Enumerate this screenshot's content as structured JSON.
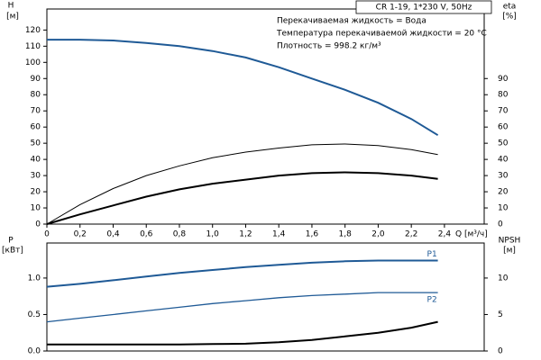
{
  "chart_data": [
    {
      "type": "line",
      "title": "CR 1-19, 1*230 V, 50Hz",
      "annotations": [
        "Перекачиваемая жидкость = Вода",
        "Температура перекачиваемой жидкости = 20 °C",
        "Плотность = 998.2 кг/м³"
      ],
      "y_label": "H",
      "y_unit": "[м]",
      "y2_label": "eta",
      "y2_unit": "[%]",
      "x_label": "Q [м³/ч]",
      "x": [
        0,
        0.2,
        0.4,
        0.6,
        0.8,
        1.0,
        1.2,
        1.4,
        1.6,
        1.8,
        2.0,
        2.2,
        2.36
      ],
      "xlim": [
        0,
        2.64
      ],
      "xticks": [
        0,
        {
          "value": 0.2,
          "label": "0,2"
        },
        {
          "value": 0.4,
          "label": "0,4"
        },
        {
          "value": 0.6,
          "label": "0,6"
        },
        {
          "value": 0.8,
          "label": "0,8"
        },
        {
          "value": 1.0,
          "label": "1,0"
        },
        {
          "value": 1.2,
          "label": "1,2"
        },
        {
          "value": 1.4,
          "label": "1,4"
        },
        {
          "value": 1.6,
          "label": "1,6"
        },
        {
          "value": 1.8,
          "label": "1,8"
        },
        {
          "value": 2.0,
          "label": "2,0"
        },
        {
          "value": 2.2,
          "label": "2,2"
        },
        {
          "value": 2.4,
          "label": "2,4"
        }
      ],
      "ylim": [
        0,
        133
      ],
      "yticks": [
        0,
        10,
        20,
        30,
        40,
        50,
        60,
        70,
        80,
        90,
        100,
        110,
        120
      ],
      "y2lim": [
        0,
        133
      ],
      "y2ticks": [
        0,
        10,
        20,
        30,
        40,
        50,
        60,
        70,
        80,
        90
      ],
      "series": [
        {
          "color": "#1f5a96",
          "line_width": 2,
          "values": [
            114,
            114,
            113.5,
            112,
            110,
            107,
            103,
            97,
            90,
            83,
            75,
            65,
            55
          ]
        },
        {
          "color": "#000000",
          "line_width": 1,
          "axis": "y2",
          "values": [
            0,
            12,
            22,
            30,
            36,
            41,
            44.5,
            47,
            49,
            49.5,
            48.5,
            46,
            43
          ]
        },
        {
          "color": "#000000",
          "line_width": 2,
          "axis": "y2",
          "values": [
            0,
            6,
            11.5,
            17,
            21.5,
            25,
            27.5,
            30,
            31.5,
            32,
            31.5,
            30,
            28
          ]
        }
      ]
    },
    {
      "type": "line",
      "y_label": "P",
      "y_unit": "[кВт]",
      "y2_label": "NPSH",
      "y2_unit": "[м]",
      "x": [
        0,
        0.2,
        0.4,
        0.6,
        0.8,
        1.0,
        1.2,
        1.4,
        1.6,
        1.8,
        2.0,
        2.2,
        2.36
      ],
      "xlim": [
        0,
        2.64
      ],
      "ylim": [
        0,
        1.48
      ],
      "yticks": [
        {
          "value": 0,
          "label": "0.0"
        },
        0.5,
        {
          "value": 1,
          "label": "1.0"
        }
      ],
      "y2lim": [
        0,
        14.8
      ],
      "y2ticks": [
        0,
        5,
        10
      ],
      "series": [
        {
          "name": "P1",
          "color": "#1f5a96",
          "line_width": 2,
          "values": [
            0.88,
            0.92,
            0.97,
            1.02,
            1.07,
            1.11,
            1.15,
            1.18,
            1.21,
            1.23,
            1.24,
            1.24,
            1.24
          ]
        },
        {
          "name": "P2",
          "color": "#1f5a96",
          "line_width": 1.3,
          "values": [
            0.4,
            0.45,
            0.5,
            0.55,
            0.6,
            0.65,
            0.69,
            0.73,
            0.76,
            0.78,
            0.8,
            0.8,
            0.8
          ]
        },
        {
          "color": "#000000",
          "line_width": 2,
          "axis": "y2",
          "values": [
            0.9,
            0.9,
            0.9,
            0.9,
            0.9,
            0.95,
            1.0,
            1.2,
            1.5,
            2.0,
            2.5,
            3.2,
            4.0
          ]
        }
      ]
    }
  ]
}
